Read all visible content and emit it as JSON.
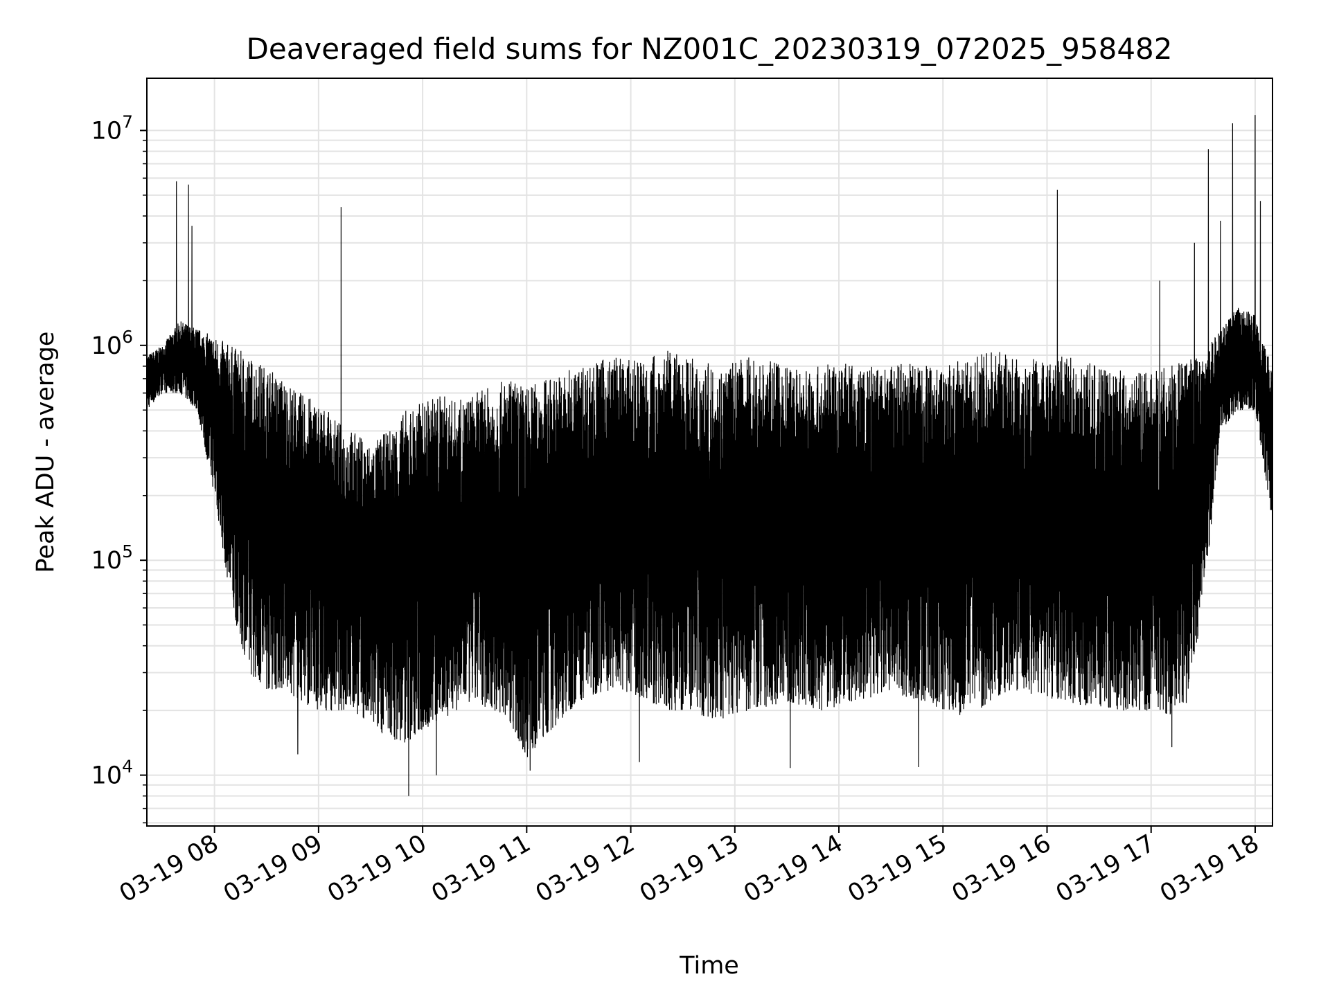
{
  "chart_data": {
    "type": "line",
    "title": "Deaveraged field sums for NZ001C_20230319_072025_958482",
    "xlabel": "Time",
    "ylabel": "Peak ADU - average",
    "yscale": "log",
    "ylim": [
      5800,
      17500000
    ],
    "xlim": [
      "03-19 07:21",
      "03-19 18:10"
    ],
    "grid": true,
    "series_color": "#000000",
    "x_ticks": [
      "03-19 08",
      "03-19 09",
      "03-19 10",
      "03-19 11",
      "03-19 12",
      "03-19 13",
      "03-19 14",
      "03-19 15",
      "03-19 16",
      "03-19 17",
      "03-19 18"
    ],
    "y_ticks": [
      {
        "base": "10",
        "exp": "4",
        "value": 10000
      },
      {
        "base": "10",
        "exp": "5",
        "value": 100000
      },
      {
        "base": "10",
        "exp": "6",
        "value": 1000000
      },
      {
        "base": "10",
        "exp": "7",
        "value": 10000000
      }
    ],
    "series": [
      {
        "x": [
          "03-19 07:21",
          "03-19 07:30",
          "03-19 07:40",
          "03-19 07:50",
          "03-19 08:00",
          "03-19 08:10",
          "03-19 08:20",
          "03-19 08:30",
          "03-19 08:40",
          "03-19 08:50",
          "03-19 09:00",
          "03-19 09:10",
          "03-19 09:20",
          "03-19 09:30",
          "03-19 09:40",
          "03-19 09:50",
          "03-19 10:00",
          "03-19 10:10",
          "03-19 10:20",
          "03-19 10:30",
          "03-19 10:40",
          "03-19 10:50",
          "03-19 11:00",
          "03-19 11:10",
          "03-19 11:20",
          "03-19 11:30",
          "03-19 11:40",
          "03-19 11:50",
          "03-19 12:00",
          "03-19 12:10",
          "03-19 12:20",
          "03-19 12:30",
          "03-19 12:40",
          "03-19 12:50",
          "03-19 13:00",
          "03-19 13:10",
          "03-19 13:20",
          "03-19 13:30",
          "03-19 13:40",
          "03-19 13:50",
          "03-19 14:00",
          "03-19 14:10",
          "03-19 14:20",
          "03-19 14:30",
          "03-19 14:40",
          "03-19 14:50",
          "03-19 15:00",
          "03-19 15:10",
          "03-19 15:20",
          "03-19 15:30",
          "03-19 15:40",
          "03-19 15:50",
          "03-19 16:00",
          "03-19 16:10",
          "03-19 16:20",
          "03-19 16:30",
          "03-19 16:40",
          "03-19 16:50",
          "03-19 17:00",
          "03-19 17:10",
          "03-19 17:20",
          "03-19 17:30",
          "03-19 17:40",
          "03-19 17:50",
          "03-19 18:00",
          "03-19 18:10"
        ],
        "upper": [
          900000,
          1000000,
          1300000,
          1200000,
          1100000,
          1000000,
          900000,
          800000,
          700000,
          600000,
          550000,
          450000,
          400000,
          350000,
          400000,
          500000,
          550000,
          600000,
          550000,
          600000,
          650000,
          700000,
          650000,
          700000,
          750000,
          800000,
          850000,
          900000,
          850000,
          900000,
          950000,
          900000,
          850000,
          800000,
          850000,
          900000,
          850000,
          800000,
          800000,
          800000,
          850000,
          800000,
          800000,
          800000,
          850000,
          850000,
          800000,
          850000,
          900000,
          950000,
          900000,
          900000,
          850000,
          900000,
          850000,
          800000,
          800000,
          750000,
          750000,
          800000,
          850000,
          900000,
          1200000,
          1500000,
          1400000,
          800000
        ],
        "lower": [
          500000,
          600000,
          600000,
          500000,
          200000,
          60000,
          30000,
          25000,
          25000,
          22000,
          20000,
          20000,
          20000,
          17000,
          15000,
          14000,
          16000,
          18000,
          20000,
          22000,
          20000,
          18000,
          12000,
          15000,
          18000,
          22000,
          24000,
          25000,
          24000,
          22000,
          20000,
          20000,
          19000,
          18000,
          19000,
          20000,
          21000,
          22000,
          21000,
          20000,
          21000,
          22000,
          23000,
          24000,
          23000,
          22000,
          20000,
          19000,
          20000,
          23000,
          25000,
          24000,
          23000,
          22000,
          21000,
          21000,
          20000,
          20000,
          20000,
          19000,
          21000,
          60000,
          400000,
          500000,
          500000,
          150000
        ],
        "spikes": [
          {
            "x": "03-19 07:38",
            "y": 5800000
          },
          {
            "x": "03-19 07:45",
            "y": 5600000
          },
          {
            "x": "03-19 07:47",
            "y": 3600000
          },
          {
            "x": "03-19 09:13",
            "y": 4400000
          },
          {
            "x": "03-19 16:06",
            "y": 5300000
          },
          {
            "x": "03-19 17:05",
            "y": 2000000
          },
          {
            "x": "03-19 17:25",
            "y": 3000000
          },
          {
            "x": "03-19 17:33",
            "y": 8200000
          },
          {
            "x": "03-19 17:40",
            "y": 3800000
          },
          {
            "x": "03-19 17:47",
            "y": 10800000
          },
          {
            "x": "03-19 18:00",
            "y": 11800000
          },
          {
            "x": "03-19 18:03",
            "y": 4700000
          }
        ],
        "dips": [
          {
            "x": "03-19 09:52",
            "y": 8000
          },
          {
            "x": "03-19 10:08",
            "y": 10000
          },
          {
            "x": "03-19 11:02",
            "y": 10500
          },
          {
            "x": "03-19 12:05",
            "y": 11500
          },
          {
            "x": "03-19 13:32",
            "y": 10800
          },
          {
            "x": "03-19 14:46",
            "y": 10900
          },
          {
            "x": "03-19 08:48",
            "y": 12500
          },
          {
            "x": "03-19 17:12",
            "y": 13500
          }
        ]
      }
    ]
  }
}
